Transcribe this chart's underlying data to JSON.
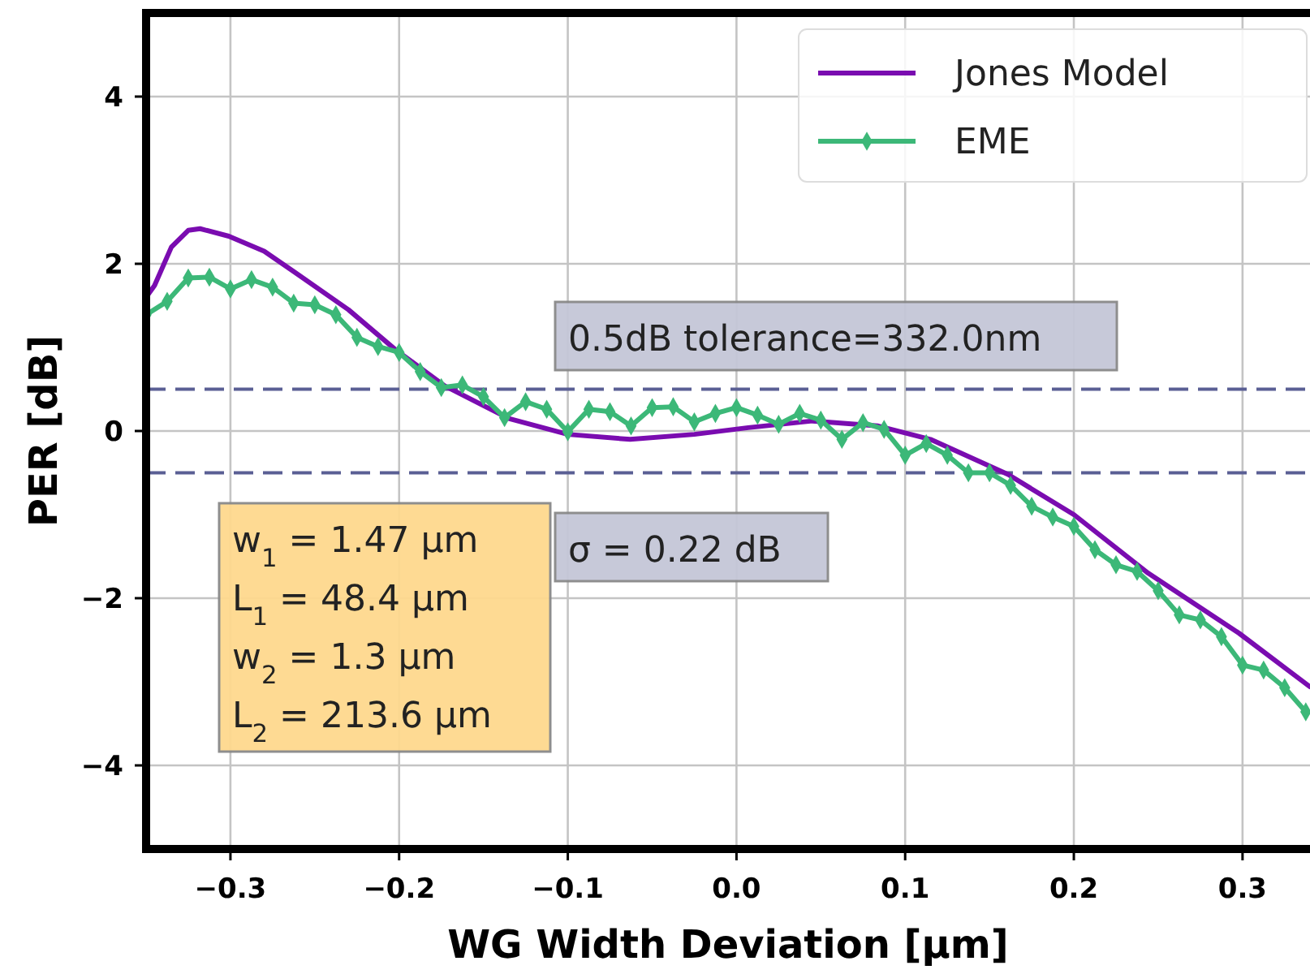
{
  "chart_data": {
    "type": "line",
    "xlabel": "WG Width Deviation [μm]",
    "ylabel": "PER [dB]",
    "xlim": [
      -0.35,
      0.34
    ],
    "ylim": [
      -5,
      5
    ],
    "xticks": [
      {
        "value": -0.3,
        "label": "−0.3"
      },
      {
        "value": -0.2,
        "label": "−0.2"
      },
      {
        "value": -0.1,
        "label": "−0.1"
      },
      {
        "value": 0,
        "label": "0.0"
      },
      {
        "value": 0.1,
        "label": "0.1"
      },
      {
        "value": 0.2,
        "label": "0.2"
      },
      {
        "value": 0.3,
        "label": "0.3"
      }
    ],
    "yticks": [
      {
        "value": -4,
        "label": "−4"
      },
      {
        "value": -2,
        "label": "−2"
      },
      0,
      2,
      4
    ],
    "grid": true,
    "legend": "top right",
    "series": [
      {
        "name": "Jones Model",
        "color": "#7a0cb0",
        "marker": "none",
        "x": [
          -0.35,
          -0.345,
          -0.335,
          -0.325,
          -0.318,
          -0.301,
          -0.28,
          -0.262,
          -0.23,
          -0.202,
          -0.173,
          -0.135,
          -0.1,
          -0.063,
          -0.025,
          0.007,
          0.045,
          0.084,
          0.115,
          0.161,
          0.2,
          0.244,
          0.298,
          0.34
        ],
        "values": [
          1.6,
          1.74,
          2.2,
          2.4,
          2.42,
          2.33,
          2.15,
          1.9,
          1.45,
          0.97,
          0.54,
          0.15,
          -0.04,
          -0.1,
          -0.04,
          0.04,
          0.12,
          0.06,
          -0.1,
          -0.52,
          -1.0,
          -1.7,
          -2.42,
          -3.06
        ]
      },
      {
        "name": "EME",
        "color": "#3cb878",
        "marker": "diamond",
        "x": [
          -0.35,
          -0.3375,
          -0.325,
          -0.3125,
          -0.3,
          -0.2875,
          -0.275,
          -0.2625,
          -0.25,
          -0.2375,
          -0.225,
          -0.2125,
          -0.2,
          -0.1875,
          -0.175,
          -0.1625,
          -0.15,
          -0.1375,
          -0.125,
          -0.1125,
          -0.1,
          -0.0875,
          -0.075,
          -0.0625,
          -0.05,
          -0.0375,
          -0.025,
          -0.0125,
          0,
          0.0125,
          0.025,
          0.0375,
          0.05,
          0.0625,
          0.075,
          0.0875,
          0.1,
          0.1125,
          0.125,
          0.1375,
          0.15,
          0.1625,
          0.175,
          0.1875,
          0.2,
          0.2125,
          0.225,
          0.2375,
          0.25,
          0.2625,
          0.275,
          0.2875,
          0.3,
          0.3125,
          0.325,
          0.3375
        ],
        "values": [
          1.39,
          1.55,
          1.83,
          1.84,
          1.7,
          1.81,
          1.72,
          1.53,
          1.51,
          1.39,
          1.12,
          1.01,
          0.94,
          0.71,
          0.52,
          0.55,
          0.41,
          0.16,
          0.35,
          0.26,
          -0.01,
          0.26,
          0.23,
          0.06,
          0.28,
          0.29,
          0.11,
          0.21,
          0.28,
          0.19,
          0.08,
          0.21,
          0.13,
          -0.1,
          0.1,
          0.02,
          -0.29,
          -0.15,
          -0.29,
          -0.5,
          -0.5,
          -0.65,
          -0.9,
          -1.03,
          -1.14,
          -1.42,
          -1.6,
          -1.68,
          -1.91,
          -2.2,
          -2.26,
          -2.46,
          -2.8,
          -2.86,
          -3.07,
          -3.36
        ]
      }
    ],
    "ref_lines": [
      {
        "axis": "y",
        "value": 0.5,
        "color": "#5a5f94",
        "line_style": "dashed"
      },
      {
        "axis": "y",
        "value": -0.5,
        "color": "#5a5f94",
        "line_style": "dashed"
      }
    ],
    "annotations": [
      "0.5dB tolerance=332.0nm",
      "σ = 0.22 dB",
      "w$_{1}$ = 1.47 μm",
      "L$_{1}$ = 48.4 μm",
      "w$_{2}$ = 1.3 μm",
      "L$_{2}$ = 213.6 μm"
    ]
  }
}
